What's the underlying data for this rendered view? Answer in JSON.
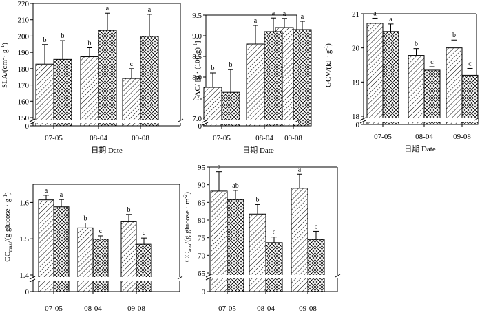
{
  "figure": {
    "patterns": [
      "diagonal-hatch",
      "cross-hatch"
    ],
    "colors": {
      "bar_fill": "#ffffff",
      "ink": "#000000"
    }
  },
  "chart_data": [
    {
      "type": "bar",
      "panel": "SLA",
      "ylabel_main": "SLA/(cm",
      "ylabel_sup1": "2",
      "ylabel_mid": "· g",
      "ylabel_sup2": "-1",
      "ylabel_end": ")",
      "xlabel": "日期 Date",
      "categories": [
        "07-05",
        "08-04",
        "09-08"
      ],
      "ylim": [
        150,
        220
      ],
      "yticks": [
        150,
        160,
        170,
        180,
        190,
        200,
        210,
        220
      ],
      "axis_break": true,
      "zero_label": "0",
      "series": [
        {
          "name": "series-1",
          "pattern": "diagonal",
          "values": [
            182.8,
            187.3,
            174.0
          ],
          "errors": [
            12.0,
            5.5,
            6.0
          ],
          "labels": [
            "b",
            "b",
            "c"
          ]
        },
        {
          "name": "series-2",
          "pattern": "cross",
          "values": [
            185.7,
            203.5,
            199.8
          ],
          "errors": [
            11.5,
            10.5,
            13.5
          ],
          "labels": [
            "b",
            "a",
            "a"
          ]
        }
      ]
    },
    {
      "type": "bar",
      "panel": "AC",
      "ylabel_main": "AC/ [g · (100 g)",
      "ylabel_sup1": "-1",
      "ylabel_mid": "]",
      "ylabel_sup2": "",
      "ylabel_end": "",
      "xlabel": "",
      "categories": [
        "07-05",
        "08-04",
        "09-08"
      ],
      "ylim": [
        7.0,
        9.5
      ],
      "yticks": [
        7.0,
        7.5,
        8.0,
        8.5,
        9.0,
        9.5
      ],
      "yticks_display": [
        "7.0",
        "7.5",
        "8.0",
        "8.5",
        "9.0",
        "9.5"
      ],
      "axis_break": true,
      "zero_label": "0",
      "series": [
        {
          "name": "series-1",
          "pattern": "diagonal",
          "values": [
            7.75,
            8.8,
            9.2
          ],
          "errors": [
            0.35,
            0.45,
            0.22
          ],
          "labels": [
            "b",
            "a",
            "a"
          ]
        },
        {
          "name": "series-2",
          "pattern": "cross",
          "values": [
            7.63,
            9.1,
            9.15
          ],
          "errors": [
            0.55,
            0.33,
            0.2
          ],
          "labels": [
            "b",
            "a",
            "a"
          ]
        }
      ]
    },
    {
      "type": "bar",
      "panel": "GCV",
      "ylabel_main": "GCV/(kJ · g",
      "ylabel_sup1": "-1",
      "ylabel_mid": ")",
      "ylabel_sup2": "",
      "ylabel_end": "",
      "xlabel": "日期 Date",
      "categories": [
        "07-05",
        "08-04",
        "09-08"
      ],
      "ylim": [
        18,
        21
      ],
      "yticks": [
        18,
        19,
        20,
        21
      ],
      "axis_break": true,
      "zero_label": "0",
      "series": [
        {
          "name": "series-1",
          "pattern": "diagonal",
          "values": [
            20.72,
            19.78,
            20.0
          ],
          "errors": [
            0.15,
            0.2,
            0.23
          ],
          "labels": [
            "a",
            "b",
            "b"
          ]
        },
        {
          "name": "series-2",
          "pattern": "cross",
          "values": [
            20.48,
            19.35,
            19.2
          ],
          "errors": [
            0.22,
            0.1,
            0.2
          ],
          "labels": [
            "a",
            "c",
            "c"
          ]
        }
      ]
    },
    {
      "type": "bar",
      "panel": "CCmass",
      "ylabel_main": "CC",
      "ylabel_sub": "mass",
      "ylabel_rest": "/(g glucose · g",
      "ylabel_sup1": "-1",
      "ylabel_end": ")",
      "xlabel": "日期 Date",
      "categories": [
        "07-05",
        "08-04",
        "09-08"
      ],
      "ylim": [
        1.4,
        1.65
      ],
      "yticks": [
        1.4,
        1.5,
        1.6
      ],
      "yticks_display": [
        "1.4",
        "1.5",
        "1.6"
      ],
      "axis_break": true,
      "zero_label": "0",
      "series": [
        {
          "name": "series-1",
          "pattern": "diagonal",
          "values": [
            1.607,
            1.53,
            1.547
          ],
          "errors": [
            0.013,
            0.013,
            0.02
          ],
          "labels": [
            "a",
            "b",
            "b"
          ]
        },
        {
          "name": "series-2",
          "pattern": "cross",
          "values": [
            1.588,
            1.499,
            1.485
          ],
          "errors": [
            0.02,
            0.009,
            0.017
          ],
          "labels": [
            "a",
            "c",
            "c"
          ]
        }
      ]
    },
    {
      "type": "bar",
      "panel": "CCarea",
      "ylabel_main": "CC",
      "ylabel_sub": "area",
      "ylabel_rest": "/(g glucose · m",
      "ylabel_sup1": "-2",
      "ylabel_end": ")",
      "xlabel": "日期 Date",
      "categories": [
        "07-05",
        "08-04",
        "09-08"
      ],
      "ylim": [
        65,
        95
      ],
      "yticks": [
        65,
        70,
        75,
        80,
        85,
        90,
        95
      ],
      "axis_break": true,
      "zero_label": "0",
      "series": [
        {
          "name": "series-1",
          "pattern": "diagonal",
          "values": [
            88.2,
            81.7,
            89.0
          ],
          "errors": [
            5.5,
            2.7,
            4.0
          ],
          "labels": [
            "a",
            "b",
            "a"
          ]
        },
        {
          "name": "series-2",
          "pattern": "cross",
          "values": [
            85.8,
            73.6,
            74.5
          ],
          "errors": [
            2.6,
            1.6,
            2.3
          ],
          "labels": [
            "ab",
            "c",
            "c"
          ]
        }
      ]
    }
  ]
}
